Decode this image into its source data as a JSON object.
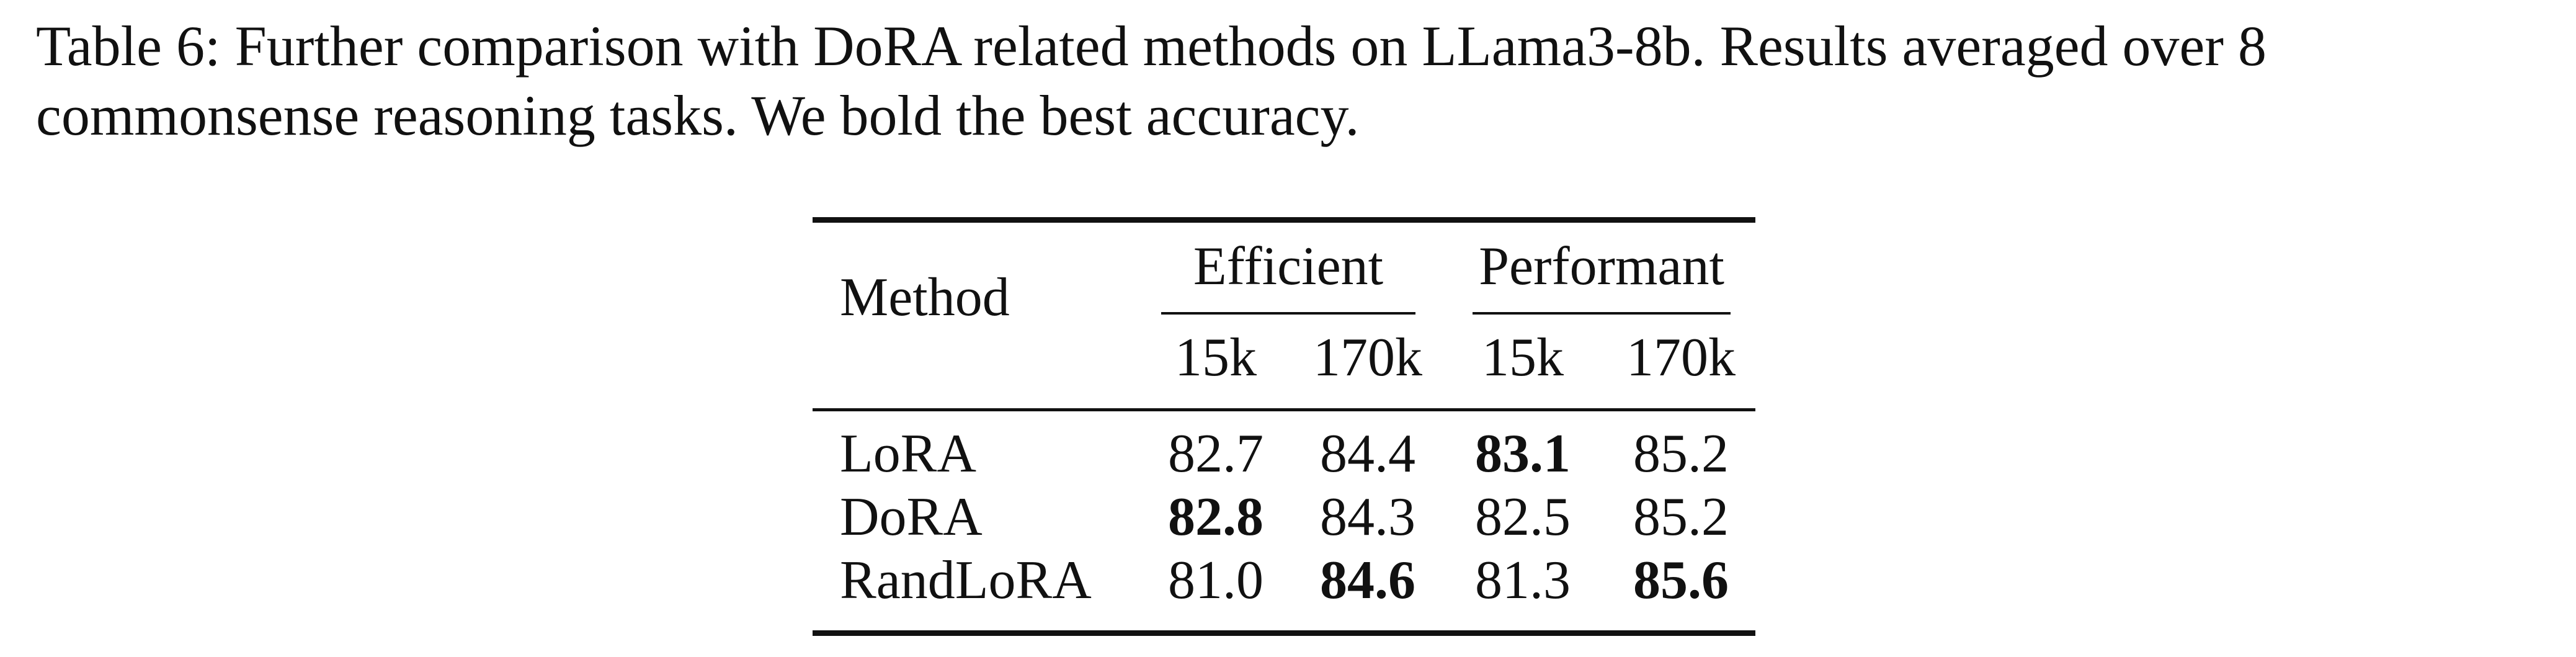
{
  "caption": {
    "line1": "Table 6: Further comparison with DoRA related methods on LLama3-8b. Results averaged over 8",
    "line2": "commonsense reasoning tasks. We bold the best accuracy."
  },
  "table": {
    "method_header": "Method",
    "group_headers": [
      "Efficient",
      "Performant"
    ],
    "sub_headers": [
      "15k",
      "170k",
      "15k",
      "170k"
    ],
    "rows": [
      {
        "method": "LoRA",
        "values": [
          "82.7",
          "84.4",
          "83.1",
          "85.2"
        ],
        "bold": [
          false,
          false,
          true,
          false
        ]
      },
      {
        "method": "DoRA",
        "values": [
          "82.8",
          "84.3",
          "82.5",
          "85.2"
        ],
        "bold": [
          true,
          false,
          false,
          false
        ]
      },
      {
        "method": "RandLoRA",
        "values": [
          "81.0",
          "84.6",
          "81.3",
          "85.6"
        ],
        "bold": [
          false,
          true,
          false,
          true
        ]
      }
    ]
  }
}
